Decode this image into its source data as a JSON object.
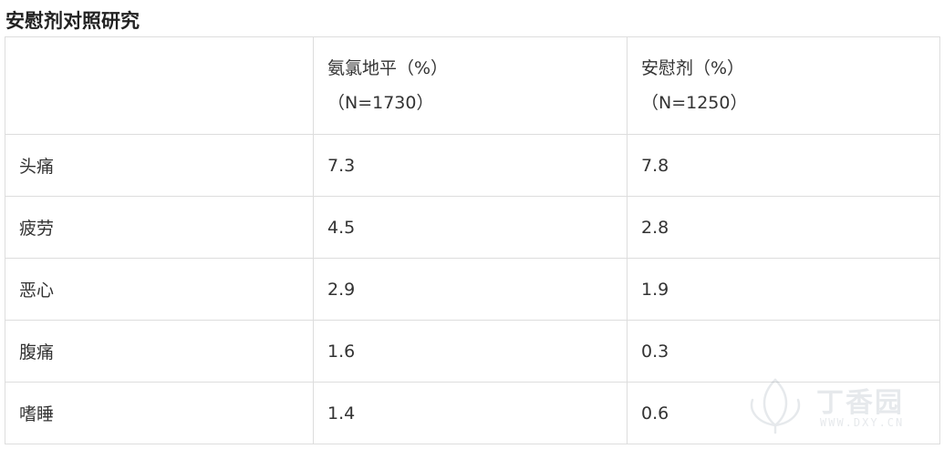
{
  "title": "安慰剂对照研究",
  "table": {
    "header": {
      "corner": "",
      "col1_line1": "氨氯地平（%）",
      "col1_line2": "（N=1730）",
      "col2_line1": "安慰剂（%）",
      "col2_line2": "（N=1250）"
    },
    "rows": [
      {
        "label": "头痛",
        "amlodipine": "7.3",
        "placebo": "7.8"
      },
      {
        "label": "疲劳",
        "amlodipine": "4.5",
        "placebo": "2.8"
      },
      {
        "label": "恶心",
        "amlodipine": "2.9",
        "placebo": "1.9"
      },
      {
        "label": "腹痛",
        "amlodipine": "1.6",
        "placebo": "0.3"
      },
      {
        "label": "嗜睡",
        "amlodipine": "1.4",
        "placebo": "0.6"
      }
    ]
  },
  "watermark": {
    "brand": "丁香园",
    "url": "WWW.DXY.CN",
    "icon": "dxy-flower-logo-icon",
    "color": "#7a8a99"
  }
}
